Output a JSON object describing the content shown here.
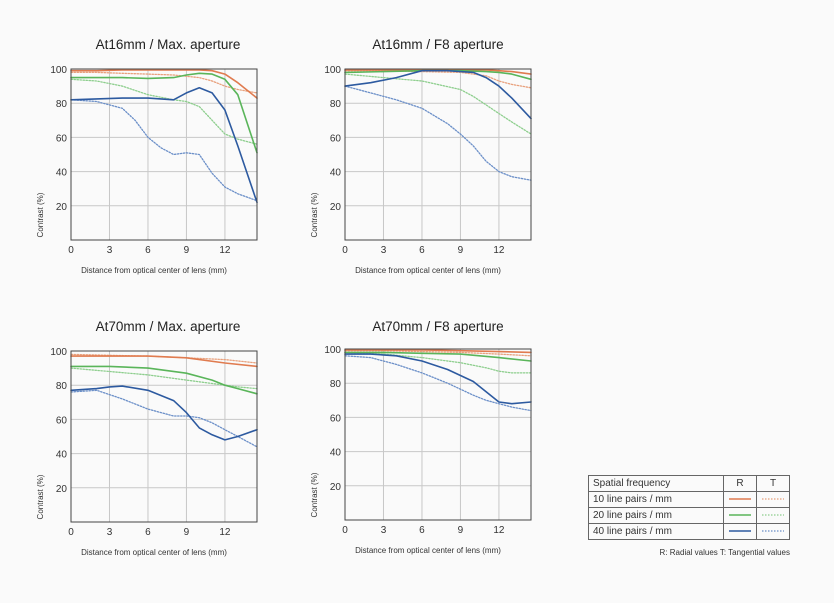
{
  "chart_data": [
    {
      "type": "line",
      "title": "At16mm / Max. aperture",
      "xlabel": "Distance from optical center of lens (mm)",
      "ylabel": "Contrast (%)",
      "xlim": [
        0,
        14.5
      ],
      "ylim": [
        0,
        100
      ],
      "xticks": [
        0,
        3,
        6,
        9,
        12
      ],
      "yticks": [
        20,
        40,
        60,
        80,
        100
      ],
      "grid": true,
      "series": [
        {
          "freq": "10",
          "kind": "R",
          "x": [
            0,
            2,
            4,
            6,
            8,
            10,
            11,
            12,
            13,
            14.5
          ],
          "y": [
            99,
            99,
            99.5,
            99.5,
            99.5,
            99.5,
            99,
            97,
            92,
            83
          ]
        },
        {
          "freq": "10",
          "kind": "T",
          "x": [
            0,
            2,
            4,
            6,
            8,
            10,
            11,
            12,
            13,
            14.5
          ],
          "y": [
            98,
            98,
            97.5,
            97,
            96.5,
            95,
            93,
            90,
            88,
            86
          ]
        },
        {
          "freq": "20",
          "kind": "R",
          "x": [
            0,
            2,
            4,
            6,
            8,
            9,
            10,
            11,
            12,
            13,
            14.5
          ],
          "y": [
            95,
            95,
            95,
            94.5,
            95,
            96.5,
            97.5,
            97,
            94,
            85,
            51
          ]
        },
        {
          "freq": "20",
          "kind": "T",
          "x": [
            0,
            2,
            4,
            6,
            8,
            9,
            10,
            11,
            12,
            13,
            14.5
          ],
          "y": [
            94,
            93,
            90,
            85,
            82,
            81,
            78,
            70,
            62,
            59,
            56
          ]
        },
        {
          "freq": "40",
          "kind": "R",
          "x": [
            0,
            2,
            4,
            6,
            8,
            9,
            10,
            11,
            12,
            13,
            14.5
          ],
          "y": [
            82,
            82.5,
            83,
            83,
            82,
            86,
            89,
            86,
            76,
            55,
            22
          ]
        },
        {
          "freq": "40",
          "kind": "T",
          "x": [
            0,
            2,
            4,
            5,
            6,
            7,
            8,
            9,
            10,
            11,
            12,
            13,
            14.5
          ],
          "y": [
            82,
            81,
            77,
            70,
            60,
            54,
            50,
            51,
            50,
            39,
            31,
            27,
            23
          ]
        }
      ]
    },
    {
      "type": "line",
      "title": "At16mm / F8 aperture",
      "xlabel": "Distance from optical center of lens (mm)",
      "ylabel": "Contrast (%)",
      "xlim": [
        0,
        14.5
      ],
      "ylim": [
        0,
        100
      ],
      "xticks": [
        0,
        3,
        6,
        9,
        12
      ],
      "yticks": [
        20,
        40,
        60,
        80,
        100
      ],
      "grid": true,
      "series": [
        {
          "freq": "10",
          "kind": "R",
          "x": [
            0,
            3,
            6,
            9,
            11,
            12,
            13,
            14.5
          ],
          "y": [
            99.5,
            99.5,
            99.5,
            99.5,
            99.5,
            99,
            98.5,
            97
          ]
        },
        {
          "freq": "10",
          "kind": "T",
          "x": [
            0,
            3,
            6,
            9,
            11,
            12,
            13,
            14.5
          ],
          "y": [
            99,
            99,
            98.5,
            98,
            96,
            93,
            91,
            89
          ]
        },
        {
          "freq": "20",
          "kind": "R",
          "x": [
            0,
            3,
            6,
            9,
            11,
            12,
            13,
            14.5
          ],
          "y": [
            98,
            98.5,
            99,
            99,
            98.5,
            98,
            97,
            94
          ]
        },
        {
          "freq": "20",
          "kind": "T",
          "x": [
            0,
            3,
            6,
            9,
            10,
            11,
            12,
            13,
            14.5
          ],
          "y": [
            97,
            95,
            93,
            88,
            84,
            79,
            74,
            69,
            62
          ]
        },
        {
          "freq": "40",
          "kind": "R",
          "x": [
            0,
            2,
            4,
            6,
            8,
            10,
            11,
            12,
            13,
            14.5
          ],
          "y": [
            90,
            92,
            95,
            99,
            99,
            98,
            95,
            90,
            83,
            71
          ]
        },
        {
          "freq": "40",
          "kind": "T",
          "x": [
            0,
            2,
            4,
            6,
            8,
            9,
            10,
            11,
            12,
            13,
            14.5
          ],
          "y": [
            90,
            86,
            82,
            77,
            68,
            62,
            55,
            46,
            40,
            37,
            35
          ]
        }
      ]
    },
    {
      "type": "line",
      "title": "At70mm / Max. aperture",
      "xlabel": "Distance from optical center of lens (mm)",
      "ylabel": "Contrast (%)",
      "xlim": [
        0,
        14.5
      ],
      "ylim": [
        0,
        100
      ],
      "xticks": [
        0,
        3,
        6,
        9,
        12
      ],
      "yticks": [
        20,
        40,
        60,
        80,
        100
      ],
      "grid": true,
      "series": [
        {
          "freq": "10",
          "kind": "R",
          "x": [
            0,
            3,
            6,
            9,
            12,
            14.5
          ],
          "y": [
            97,
            97,
            97,
            96,
            93,
            91
          ]
        },
        {
          "freq": "10",
          "kind": "T",
          "x": [
            0,
            3,
            6,
            9,
            12,
            14.5
          ],
          "y": [
            98,
            97.5,
            97,
            96,
            95,
            93
          ]
        },
        {
          "freq": "20",
          "kind": "R",
          "x": [
            0,
            3,
            6,
            9,
            11,
            12,
            13,
            14.5
          ],
          "y": [
            91,
            91,
            90,
            87,
            83,
            80,
            78,
            75
          ]
        },
        {
          "freq": "20",
          "kind": "T",
          "x": [
            0,
            3,
            6,
            9,
            11,
            12,
            13,
            14.5
          ],
          "y": [
            90,
            88,
            86,
            83,
            81,
            80,
            79,
            78
          ]
        },
        {
          "freq": "40",
          "kind": "R",
          "x": [
            0,
            2,
            3,
            4,
            6,
            8,
            9,
            10,
            11,
            12,
            13,
            14.5
          ],
          "y": [
            77,
            78,
            79,
            79.5,
            77,
            71,
            64,
            55,
            51,
            48,
            50,
            54
          ]
        },
        {
          "freq": "40",
          "kind": "T",
          "x": [
            0,
            2,
            4,
            6,
            8,
            9,
            10,
            11,
            12,
            13,
            14.5
          ],
          "y": [
            76,
            77,
            72,
            66,
            62,
            62,
            61,
            58,
            54,
            50,
            44
          ]
        }
      ]
    },
    {
      "type": "line",
      "title": "At70mm / F8 aperture",
      "xlabel": "Distance from optical center of lens (mm)",
      "ylabel": "Contrast (%)",
      "xlim": [
        0,
        14.5
      ],
      "ylim": [
        0,
        100
      ],
      "xticks": [
        0,
        3,
        6,
        9,
        12
      ],
      "yticks": [
        20,
        40,
        60,
        80,
        100
      ],
      "grid": true,
      "series": [
        {
          "freq": "10",
          "kind": "R",
          "x": [
            0,
            3,
            6,
            9,
            12,
            14.5
          ],
          "y": [
            99.5,
            99.5,
            99.5,
            99,
            98.5,
            98
          ]
        },
        {
          "freq": "10",
          "kind": "T",
          "x": [
            0,
            3,
            6,
            9,
            12,
            14.5
          ],
          "y": [
            99,
            99,
            98.5,
            98,
            97,
            96
          ]
        },
        {
          "freq": "20",
          "kind": "R",
          "x": [
            0,
            3,
            6,
            9,
            12,
            14.5
          ],
          "y": [
            98,
            98,
            97.5,
            97,
            95,
            93
          ]
        },
        {
          "freq": "20",
          "kind": "T",
          "x": [
            0,
            3,
            6,
            9,
            11,
            12,
            13,
            14.5
          ],
          "y": [
            98,
            97,
            95,
            92,
            89,
            87,
            86,
            86
          ]
        },
        {
          "freq": "40",
          "kind": "R",
          "x": [
            0,
            2,
            4,
            6,
            8,
            10,
            11,
            12,
            13,
            14.5
          ],
          "y": [
            97,
            97,
            96,
            93,
            88,
            81,
            75,
            69,
            68,
            69
          ]
        },
        {
          "freq": "40",
          "kind": "T",
          "x": [
            0,
            2,
            4,
            6,
            8,
            10,
            11,
            12,
            13,
            14.5
          ],
          "y": [
            96,
            95,
            91,
            86,
            80,
            73,
            70,
            68,
            66,
            64
          ]
        }
      ]
    }
  ],
  "legend": {
    "header": {
      "label": "Spatial frequency",
      "r": "R",
      "t": "T"
    },
    "rows": [
      {
        "freq": "10",
        "label": "10 line pairs / mm",
        "color": "#e07b4f"
      },
      {
        "freq": "20",
        "label": "20 line pairs / mm",
        "color": "#5ab55a"
      },
      {
        "freq": "40",
        "label": "40 line pairs / mm",
        "color": "#2d5aa0"
      }
    ],
    "tangential_colors": {
      "10": "#e8a07c",
      "20": "#8dce8d",
      "40": "#6b8fc8"
    },
    "note": "R: Radial values  T: Tangential values"
  }
}
